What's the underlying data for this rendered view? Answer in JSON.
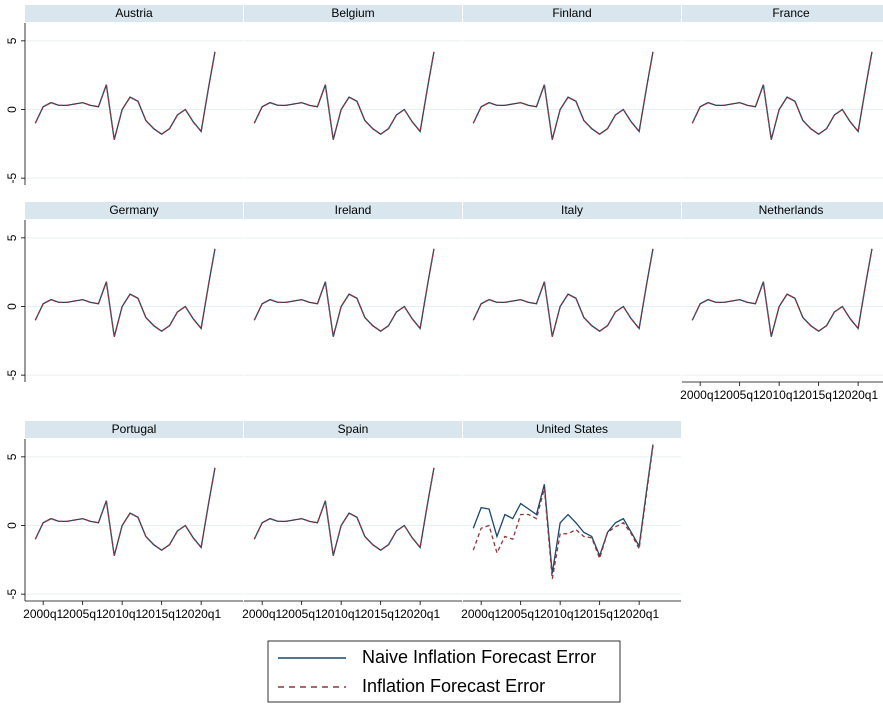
{
  "chart_data": {
    "type": "line",
    "x": [
      1999,
      2000,
      2001,
      2002,
      2003,
      2004,
      2005,
      2006,
      2007,
      2008,
      2009,
      2010,
      2011,
      2012,
      2013,
      2014,
      2015,
      2016,
      2017,
      2018,
      2019,
      2020,
      2021,
      2021.75
    ],
    "xlim": [
      1997.7,
      2025.3
    ],
    "xticks": [
      {
        "value": 2000,
        "label": "2000q1"
      },
      {
        "value": 2005,
        "label": "2005q1"
      },
      {
        "value": 2010,
        "label": "2010q1"
      },
      {
        "value": 2015,
        "label": "2015q1"
      },
      {
        "value": 2020,
        "label": "2020q1"
      }
    ],
    "ylim": [
      -5.5,
      6.3
    ],
    "yticks": [
      -5,
      0,
      5
    ],
    "grid": true,
    "legend": "bottom",
    "series": [
      {
        "name": "Naive Inflation Forecast Error",
        "color": "#1a476f",
        "dash": false
      },
      {
        "name": "Inflation Forecast Error",
        "color": "#90353b",
        "dash": true
      }
    ],
    "panels": [
      {
        "title": "Austria",
        "values": [
          [
            -1.0,
            0.2,
            0.5,
            0.3,
            0.3,
            0.4,
            0.5,
            0.3,
            0.2,
            1.8,
            -2.2,
            0.0,
            0.9,
            0.6,
            -0.8,
            -1.4,
            -1.8,
            -1.4,
            -0.4,
            0.0,
            -0.9,
            -1.6,
            1.8,
            4.2
          ],
          [
            -1.0,
            0.2,
            0.5,
            0.3,
            0.3,
            0.4,
            0.5,
            0.3,
            0.2,
            1.8,
            -2.2,
            0.0,
            0.9,
            0.6,
            -0.8,
            -1.4,
            -1.8,
            -1.4,
            -0.4,
            0.0,
            -0.9,
            -1.6,
            1.8,
            4.2
          ]
        ]
      },
      {
        "title": "Belgium",
        "values": [
          [
            -1.0,
            0.2,
            0.5,
            0.3,
            0.3,
            0.4,
            0.5,
            0.3,
            0.2,
            1.8,
            -2.2,
            0.0,
            0.9,
            0.6,
            -0.8,
            -1.4,
            -1.8,
            -1.4,
            -0.4,
            0.0,
            -0.9,
            -1.6,
            1.8,
            4.2
          ],
          [
            -1.0,
            0.2,
            0.5,
            0.3,
            0.3,
            0.4,
            0.5,
            0.3,
            0.2,
            1.8,
            -2.2,
            0.0,
            0.9,
            0.6,
            -0.8,
            -1.4,
            -1.8,
            -1.4,
            -0.4,
            0.0,
            -0.9,
            -1.6,
            1.8,
            4.2
          ]
        ]
      },
      {
        "title": "Finland",
        "values": [
          [
            -1.0,
            0.2,
            0.5,
            0.3,
            0.3,
            0.4,
            0.5,
            0.3,
            0.2,
            1.8,
            -2.2,
            0.0,
            0.9,
            0.6,
            -0.8,
            -1.4,
            -1.8,
            -1.4,
            -0.4,
            0.0,
            -0.9,
            -1.6,
            1.8,
            4.2
          ],
          [
            -1.0,
            0.2,
            0.5,
            0.3,
            0.3,
            0.4,
            0.5,
            0.3,
            0.2,
            1.8,
            -2.2,
            0.0,
            0.9,
            0.6,
            -0.8,
            -1.4,
            -1.8,
            -1.4,
            -0.4,
            0.0,
            -0.9,
            -1.6,
            1.8,
            4.2
          ]
        ]
      },
      {
        "title": "France",
        "values": [
          [
            -1.0,
            0.2,
            0.5,
            0.3,
            0.3,
            0.4,
            0.5,
            0.3,
            0.2,
            1.8,
            -2.2,
            0.0,
            0.9,
            0.6,
            -0.8,
            -1.4,
            -1.8,
            -1.4,
            -0.4,
            0.0,
            -0.9,
            -1.6,
            1.8,
            4.2
          ],
          [
            -1.0,
            0.2,
            0.5,
            0.3,
            0.3,
            0.4,
            0.5,
            0.3,
            0.2,
            1.8,
            -2.2,
            0.0,
            0.9,
            0.6,
            -0.8,
            -1.4,
            -1.8,
            -1.4,
            -0.4,
            0.0,
            -0.9,
            -1.6,
            1.8,
            4.2
          ]
        ]
      },
      {
        "title": "Germany",
        "values": [
          [
            -1.0,
            0.2,
            0.5,
            0.3,
            0.3,
            0.4,
            0.5,
            0.3,
            0.2,
            1.8,
            -2.2,
            0.0,
            0.9,
            0.6,
            -0.8,
            -1.4,
            -1.8,
            -1.4,
            -0.4,
            0.0,
            -0.9,
            -1.6,
            1.8,
            4.2
          ],
          [
            -1.0,
            0.2,
            0.5,
            0.3,
            0.3,
            0.4,
            0.5,
            0.3,
            0.2,
            1.8,
            -2.2,
            0.0,
            0.9,
            0.6,
            -0.8,
            -1.4,
            -1.8,
            -1.4,
            -0.4,
            0.0,
            -0.9,
            -1.6,
            1.8,
            4.2
          ]
        ]
      },
      {
        "title": "Ireland",
        "values": [
          [
            -1.0,
            0.2,
            0.5,
            0.3,
            0.3,
            0.4,
            0.5,
            0.3,
            0.2,
            1.8,
            -2.2,
            0.0,
            0.9,
            0.6,
            -0.8,
            -1.4,
            -1.8,
            -1.4,
            -0.4,
            0.0,
            -0.9,
            -1.6,
            1.8,
            4.2
          ],
          [
            -1.0,
            0.2,
            0.5,
            0.3,
            0.3,
            0.4,
            0.5,
            0.3,
            0.2,
            1.8,
            -2.2,
            0.0,
            0.9,
            0.6,
            -0.8,
            -1.4,
            -1.8,
            -1.4,
            -0.4,
            0.0,
            -0.9,
            -1.6,
            1.8,
            4.2
          ]
        ]
      },
      {
        "title": "Italy",
        "values": [
          [
            -1.0,
            0.2,
            0.5,
            0.3,
            0.3,
            0.4,
            0.5,
            0.3,
            0.2,
            1.8,
            -2.2,
            0.0,
            0.9,
            0.6,
            -0.8,
            -1.4,
            -1.8,
            -1.4,
            -0.4,
            0.0,
            -0.9,
            -1.6,
            1.8,
            4.2
          ],
          [
            -1.0,
            0.2,
            0.5,
            0.3,
            0.3,
            0.4,
            0.5,
            0.3,
            0.2,
            1.8,
            -2.2,
            0.0,
            0.9,
            0.6,
            -0.8,
            -1.4,
            -1.8,
            -1.4,
            -0.4,
            0.0,
            -0.9,
            -1.6,
            1.8,
            4.2
          ]
        ]
      },
      {
        "title": "Netherlands",
        "values": [
          [
            -1.0,
            0.2,
            0.5,
            0.3,
            0.3,
            0.4,
            0.5,
            0.3,
            0.2,
            1.8,
            -2.2,
            0.0,
            0.9,
            0.6,
            -0.8,
            -1.4,
            -1.8,
            -1.4,
            -0.4,
            0.0,
            -0.9,
            -1.6,
            1.8,
            4.2
          ],
          [
            -1.0,
            0.2,
            0.5,
            0.3,
            0.3,
            0.4,
            0.5,
            0.3,
            0.2,
            1.8,
            -2.2,
            0.0,
            0.9,
            0.6,
            -0.8,
            -1.4,
            -1.8,
            -1.4,
            -0.4,
            0.0,
            -0.9,
            -1.6,
            1.8,
            4.2
          ]
        ]
      },
      {
        "title": "Portugal",
        "values": [
          [
            -1.0,
            0.2,
            0.5,
            0.3,
            0.3,
            0.4,
            0.5,
            0.3,
            0.2,
            1.8,
            -2.2,
            0.0,
            0.9,
            0.6,
            -0.8,
            -1.4,
            -1.8,
            -1.4,
            -0.4,
            0.0,
            -0.9,
            -1.6,
            1.8,
            4.2
          ],
          [
            -1.0,
            0.2,
            0.5,
            0.3,
            0.3,
            0.4,
            0.5,
            0.3,
            0.2,
            1.8,
            -2.2,
            0.0,
            0.9,
            0.6,
            -0.8,
            -1.4,
            -1.8,
            -1.4,
            -0.4,
            0.0,
            -0.9,
            -1.6,
            1.8,
            4.2
          ]
        ]
      },
      {
        "title": "Spain",
        "values": [
          [
            -1.0,
            0.2,
            0.5,
            0.3,
            0.3,
            0.4,
            0.5,
            0.3,
            0.2,
            1.8,
            -2.2,
            0.0,
            0.9,
            0.6,
            -0.8,
            -1.4,
            -1.8,
            -1.4,
            -0.4,
            0.0,
            -0.9,
            -1.6,
            1.8,
            4.2
          ],
          [
            -1.0,
            0.2,
            0.5,
            0.3,
            0.3,
            0.4,
            0.5,
            0.3,
            0.2,
            1.8,
            -2.2,
            0.0,
            0.9,
            0.6,
            -0.8,
            -1.4,
            -1.8,
            -1.4,
            -0.4,
            0.0,
            -0.9,
            -1.6,
            1.8,
            4.2
          ]
        ]
      },
      {
        "title": "United States",
        "values": [
          [
            -0.2,
            1.3,
            1.2,
            -0.8,
            0.8,
            0.5,
            1.6,
            1.2,
            0.8,
            3.0,
            -3.5,
            0.2,
            0.8,
            0.2,
            -0.5,
            -0.8,
            -2.2,
            -0.5,
            0.2,
            0.5,
            -0.5,
            -1.5,
            2.8,
            5.9
          ],
          [
            -1.8,
            -0.2,
            0.0,
            -2.0,
            -0.8,
            -1.0,
            0.8,
            0.8,
            0.5,
            2.7,
            -3.9,
            -0.6,
            -0.6,
            -0.3,
            -0.8,
            -0.9,
            -2.4,
            -0.5,
            -0.1,
            0.2,
            -0.6,
            -1.7,
            2.6,
            5.8
          ]
        ]
      }
    ]
  }
}
